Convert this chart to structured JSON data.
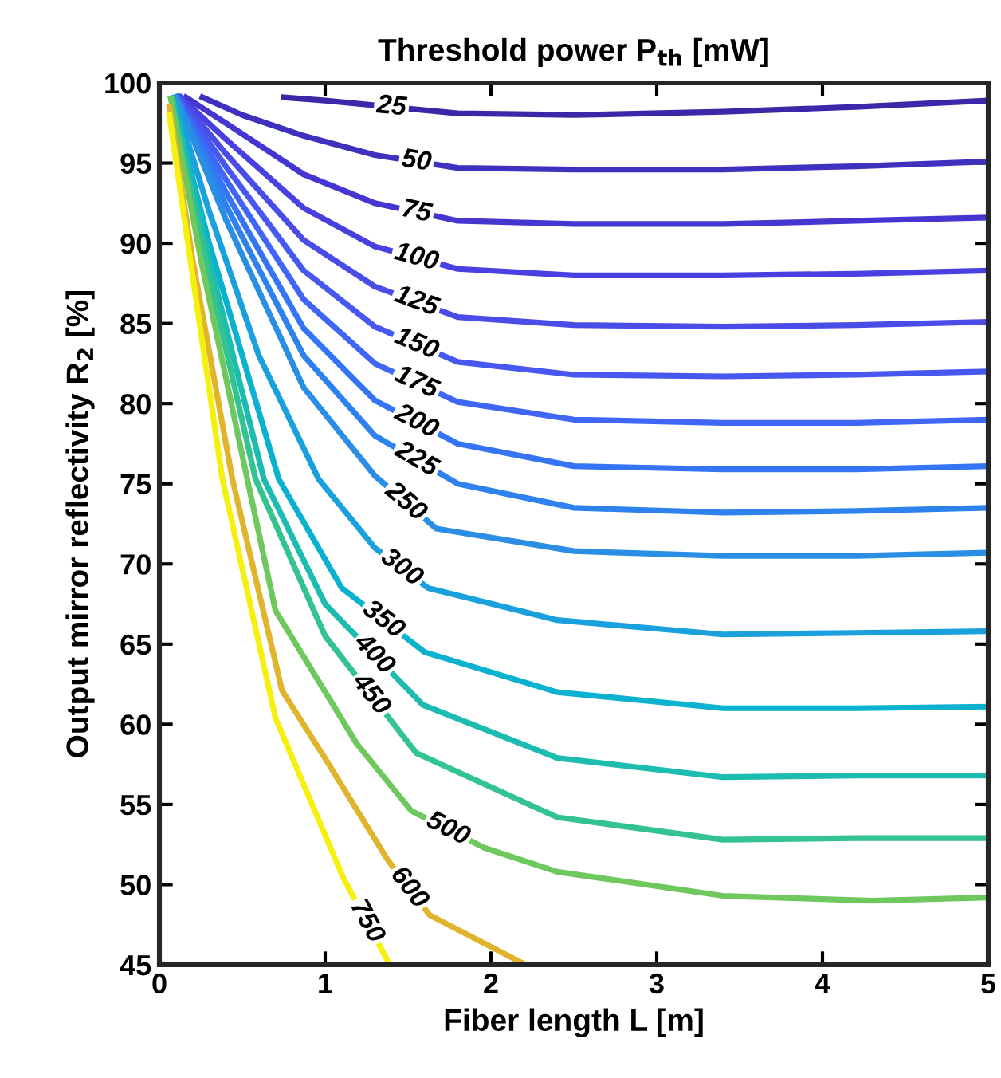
{
  "chart_data": {
    "type": "line",
    "title": "Threshold power P$_{th}$ [mW]",
    "xlabel": "Fiber length L [m]",
    "ylabel": "Output mirror reflectivity R$_{2}$ [%]",
    "xlim": [
      0,
      5
    ],
    "xticks": [
      0,
      1,
      2,
      3,
      4,
      5
    ],
    "ylim": [
      45,
      100
    ],
    "yticks": [
      45,
      50,
      55,
      60,
      65,
      70,
      75,
      80,
      85,
      90,
      95,
      100
    ],
    "grid": false,
    "legend": false,
    "series": [
      {
        "name": "25",
        "color": "#3e26a8",
        "x": [
          0.75,
          1.0,
          1.8,
          2.5,
          3.4,
          4.2,
          5
        ],
        "values": [
          99.1,
          98.9,
          98.1,
          98.0,
          98.2,
          98.5,
          98.9
        ]
      },
      {
        "name": "50",
        "color": "#4030c0",
        "x": [
          0.26,
          0.5,
          0.87,
          1.3,
          1.8,
          2.5,
          3.4,
          4.2,
          5
        ],
        "values": [
          99.1,
          98.0,
          96.7,
          95.5,
          94.7,
          94.6,
          94.6,
          94.8,
          95.1
        ]
      },
      {
        "name": "75",
        "color": "#4536d2",
        "x": [
          0.16,
          0.4,
          0.87,
          1.3,
          1.8,
          2.5,
          3.4,
          4.2,
          5
        ],
        "values": [
          99.1,
          97.5,
          94.3,
          92.5,
          91.4,
          91.2,
          91.2,
          91.4,
          91.6
        ]
      },
      {
        "name": "100",
        "color": "#4840e0",
        "x": [
          0.13,
          0.4,
          0.87,
          1.3,
          1.8,
          2.5,
          3.4,
          4.2,
          5
        ],
        "values": [
          99.1,
          96.5,
          92.2,
          89.8,
          88.4,
          88.0,
          88.0,
          88.1,
          88.3
        ]
      },
      {
        "name": "125",
        "color": "#4a4ce8",
        "x": [
          0.12,
          0.4,
          0.87,
          1.3,
          1.8,
          2.5,
          3.4,
          4.2,
          5
        ],
        "values": [
          99.1,
          95.6,
          90.2,
          87.3,
          85.4,
          84.9,
          84.8,
          84.9,
          85.1
        ]
      },
      {
        "name": "150",
        "color": "#4658f0",
        "x": [
          0.11,
          0.4,
          0.87,
          1.3,
          1.8,
          2.5,
          3.4,
          4.2,
          5
        ],
        "values": [
          99.1,
          94.8,
          88.3,
          84.8,
          82.6,
          81.8,
          81.7,
          81.8,
          82.0
        ]
      },
      {
        "name": "175",
        "color": "#3f66f6",
        "x": [
          0.1,
          0.4,
          0.87,
          1.3,
          1.8,
          2.5,
          3.4,
          4.2,
          5
        ],
        "values": [
          99.1,
          94.0,
          86.5,
          82.5,
          80.1,
          79.0,
          78.8,
          78.8,
          79.0
        ]
      },
      {
        "name": "200",
        "color": "#3574f4",
        "x": [
          0.1,
          0.4,
          0.87,
          1.3,
          1.8,
          2.5,
          3.4,
          4.2,
          5
        ],
        "values": [
          99.1,
          93.2,
          84.7,
          80.2,
          77.5,
          76.1,
          75.9,
          75.9,
          76.1
        ]
      },
      {
        "name": "225",
        "color": "#2d82ee",
        "x": [
          0.1,
          0.4,
          0.87,
          1.3,
          1.8,
          2.5,
          3.4,
          4.2,
          5
        ],
        "values": [
          99.1,
          92.4,
          83.0,
          78.0,
          75.0,
          73.5,
          73.2,
          73.3,
          73.5
        ]
      },
      {
        "name": "250",
        "color": "#2a8ee4",
        "x": [
          0.1,
          0.4,
          0.87,
          1.3,
          1.67,
          2.5,
          3.4,
          4.2,
          5
        ],
        "values": [
          99.1,
          91.5,
          81.0,
          75.5,
          72.2,
          70.8,
          70.5,
          70.5,
          70.7
        ]
      },
      {
        "name": "300",
        "color": "#1aa0dc",
        "x": [
          0.09,
          0.3,
          0.6,
          0.96,
          1.3,
          1.62,
          2.4,
          3.4,
          4.2,
          5
        ],
        "values": [
          99.1,
          92.0,
          83.0,
          75.3,
          71.0,
          68.5,
          66.5,
          65.6,
          65.7,
          65.8
        ]
      },
      {
        "name": "350",
        "color": "#0ab2d0",
        "x": [
          0.08,
          0.3,
          0.72,
          1.1,
          1.6,
          2.4,
          3.4,
          4.2,
          5
        ],
        "values": [
          99.0,
          90.0,
          75.3,
          68.5,
          64.5,
          62.0,
          61.0,
          61.0,
          61.1
        ]
      },
      {
        "name": "400",
        "color": "#1cbcb0",
        "x": [
          0.08,
          0.3,
          0.63,
          1.0,
          1.59,
          2.4,
          3.4,
          4.2,
          5
        ],
        "values": [
          99.0,
          89.0,
          75.3,
          67.5,
          61.2,
          57.9,
          56.7,
          56.8,
          56.8
        ]
      },
      {
        "name": "450",
        "color": "#33c390",
        "x": [
          0.07,
          0.3,
          0.58,
          1.0,
          1.55,
          2.4,
          3.4,
          4.2,
          5
        ],
        "values": [
          99.0,
          88.0,
          75.3,
          65.5,
          58.2,
          54.2,
          52.8,
          52.9,
          52.9
        ]
      },
      {
        "name": "500",
        "color": "#6ec85e",
        "x": [
          0.07,
          0.25,
          0.53,
          0.7,
          1.19,
          1.52,
          1.96,
          2.4,
          3.4,
          4.3,
          5
        ],
        "values": [
          99.0,
          89.0,
          75.3,
          67.1,
          58.8,
          54.6,
          52.3,
          50.8,
          49.3,
          49.0,
          49.2
        ]
      },
      {
        "name": "600",
        "color": "#e0b42c",
        "x": [
          0.06,
          0.2,
          0.44,
          0.74,
          1.01,
          1.38,
          1.63,
          2.21
        ],
        "values": [
          98.5,
          89.0,
          75.3,
          62.1,
          57.7,
          51.5,
          48.1,
          45.0
        ]
      },
      {
        "name": "750",
        "color": "#f5f010",
        "x": [
          0.06,
          0.2,
          0.38,
          0.7,
          1.11,
          1.39
        ],
        "values": [
          98.0,
          88.0,
          75.3,
          60.4,
          50.4,
          45.0
        ]
      }
    ]
  }
}
